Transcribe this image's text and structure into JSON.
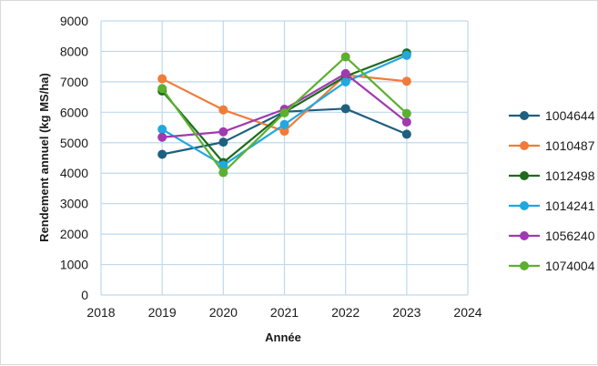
{
  "chart_data": {
    "type": "line",
    "xlabel": "Année",
    "ylabel": "Rendement annuel (kg MS/ha)",
    "xlim": [
      2018,
      2024
    ],
    "ylim": [
      0,
      9000
    ],
    "x_ticks": [
      2018,
      2019,
      2020,
      2021,
      2022,
      2023,
      2024
    ],
    "y_ticks": [
      0,
      1000,
      2000,
      3000,
      4000,
      5000,
      6000,
      7000,
      8000,
      9000
    ],
    "grid": true,
    "legend_position": "right",
    "x": [
      2019,
      2020,
      2021,
      2022,
      2023
    ],
    "series": [
      {
        "name": "1004644",
        "color": "#1f5f7f",
        "values": [
          4620,
          5020,
          6020,
          6120,
          5280
        ]
      },
      {
        "name": "1010487",
        "color": "#f07c3a",
        "values": [
          7100,
          6080,
          5380,
          7220,
          7020
        ]
      },
      {
        "name": "1012498",
        "color": "#1e6b1e",
        "values": [
          6700,
          4350,
          6000,
          7180,
          7950
        ]
      },
      {
        "name": "1014241",
        "color": "#22a7e0",
        "values": [
          5440,
          4260,
          5600,
          7000,
          7870
        ]
      },
      {
        "name": "1056240",
        "color": "#a03ab0",
        "values": [
          5180,
          5360,
          6100,
          7270,
          5680
        ]
      },
      {
        "name": "1074004",
        "color": "#5cb030",
        "values": [
          6780,
          4020,
          5980,
          7820,
          5960
        ]
      }
    ]
  }
}
